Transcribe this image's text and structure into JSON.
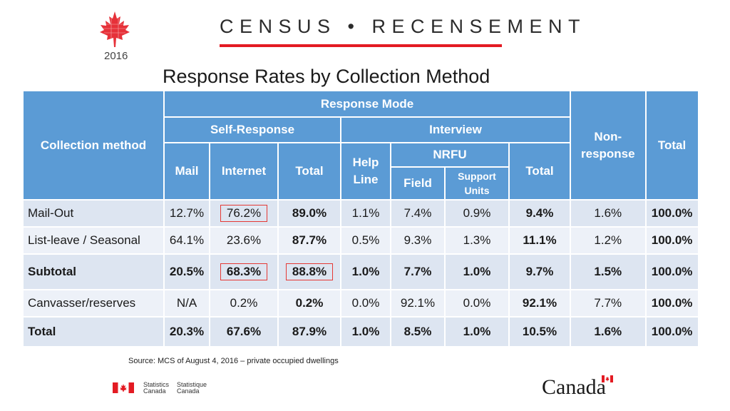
{
  "header": {
    "brand": "CENSUS • RECENSEMENT",
    "year": "2016",
    "title": "Response Rates by Collection Method"
  },
  "table": {
    "headers": {
      "collection_method": "Collection method",
      "response_mode": "Response Mode",
      "self_response": "Self-Response",
      "interview": "Interview",
      "nrfu": "NRFU",
      "mail": "Mail",
      "internet": "Internet",
      "total_self": "Total",
      "help_line": "Help Line",
      "field": "Field",
      "support_units": "Support Units",
      "total_interview": "Total",
      "non_response": "Non-response",
      "total": "Total"
    },
    "rows": [
      {
        "label": "Mail-Out",
        "mail": "12.7%",
        "internet": "76.2%",
        "total_self": "89.0%",
        "help_line": "1.1%",
        "field": "7.4%",
        "support_units": "0.9%",
        "total_interview": "9.4%",
        "non_response": "1.6%",
        "total": "100.0%"
      },
      {
        "label": "List-leave / Seasonal",
        "mail": "64.1%",
        "internet": "23.6%",
        "total_self": "87.7%",
        "help_line": "0.5%",
        "field": "9.3%",
        "support_units": "1.3%",
        "total_interview": "11.1%",
        "non_response": "1.2%",
        "total": "100.0%"
      },
      {
        "label": "Subtotal",
        "mail": "20.5%",
        "internet": "68.3%",
        "total_self": "88.8%",
        "help_line": "1.0%",
        "field": "7.7%",
        "support_units": "1.0%",
        "total_interview": "9.7%",
        "non_response": "1.5%",
        "total": "100.0%"
      },
      {
        "label": "Canvasser/reserves",
        "mail": "N/A",
        "internet": "0.2%",
        "total_self": "0.2%",
        "help_line": "0.0%",
        "field": "92.1%",
        "support_units": "0.0%",
        "total_interview": "92.1%",
        "non_response": "7.7%",
        "total": "100.0%"
      },
      {
        "label": "Total",
        "mail": "20.3%",
        "internet": "67.6%",
        "total_self": "87.9%",
        "help_line": "1.0%",
        "field": "8.5%",
        "support_units": "1.0%",
        "total_interview": "10.5%",
        "non_response": "1.6%",
        "total": "100.0%"
      }
    ]
  },
  "source": "Source: MCS of August 4, 2016 – private occupied dwellings",
  "footer": {
    "statcan_en_1": "Statistics",
    "statcan_en_2": "Canada",
    "statcan_fr_1": "Statistique",
    "statcan_fr_2": "Canada",
    "wordmark": "Canada"
  },
  "colors": {
    "header_blue": "#5b9bd5",
    "row_dark": "#dde5f1",
    "row_light": "#edf1f8",
    "accent_red": "#e31b23",
    "highlight_red": "#e53935"
  },
  "icons": [
    "maple-leaf-logo-icon",
    "canada-flag-icon"
  ]
}
